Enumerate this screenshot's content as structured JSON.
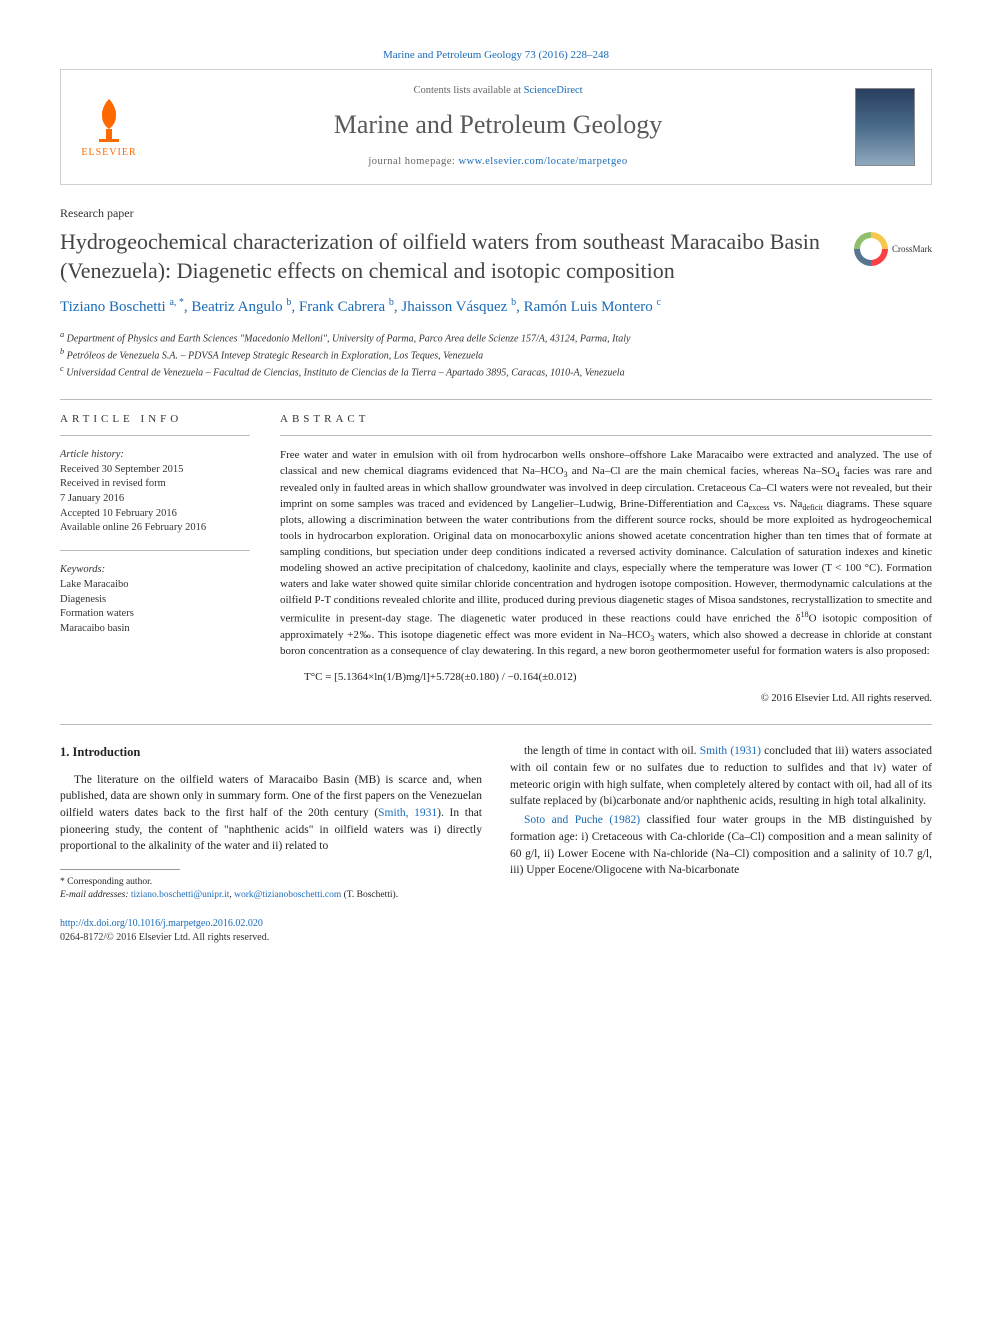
{
  "journal_ref": "Marine and Petroleum Geology 73 (2016) 228–248",
  "header": {
    "publisher": "ELSEVIER",
    "contents_prefix": "Contents lists available at ",
    "contents_link": "ScienceDirect",
    "journal_name": "Marine and Petroleum Geology",
    "home_prefix": "journal homepage: ",
    "home_url": "www.elsevier.com/locate/marpetgeo"
  },
  "paper_type": "Research paper",
  "title": "Hydrogeochemical characterization of oilfield waters from southeast Maracaibo Basin (Venezuela): Diagenetic effects on chemical and isotopic composition",
  "crossmark": "CrossMark",
  "authors_html": "Tiziano Boschetti <sup>a, *</sup>, Beatriz Angulo <sup>b</sup>, Frank Cabrera <sup>b</sup>, Jhaisson Vásquez <sup>b</sup>, Ramón Luis Montero <sup>c</sup>",
  "affiliations": [
    "a Department of Physics and Earth Sciences \"Macedonio Melloni\", University of Parma, Parco Area delle Scienze 157/A, 43124, Parma, Italy",
    "b Petróleos de Venezuela S.A. – PDVSA Intevep Strategic Research in Exploration, Los Teques, Venezuela",
    "c Universidad Central de Venezuela – Facultad de Ciencias, Instituto de Ciencias de la Tierra – Apartado 3895, Caracas, 1010-A, Venezuela"
  ],
  "article_info": {
    "head": "ARTICLE INFO",
    "history_label": "Article history:",
    "history": [
      "Received 30 September 2015",
      "Received in revised form",
      "7 January 2016",
      "Accepted 10 February 2016",
      "Available online 26 February 2016"
    ],
    "keywords_label": "Keywords:",
    "keywords": [
      "Lake Maracaibo",
      "Diagenesis",
      "Formation waters",
      "Maracaibo basin"
    ]
  },
  "abstract": {
    "head": "ABSTRACT",
    "text": "Free water and water in emulsion with oil from hydrocarbon wells onshore–offshore Lake Maracaibo were extracted and analyzed. The use of classical and new chemical diagrams evidenced that Na–HCO₃ and Na–Cl are the main chemical facies, whereas Na–SO₄ facies was rare and revealed only in faulted areas in which shallow groundwater was involved in deep circulation. Cretaceous Ca–Cl waters were not revealed, but their imprint on some samples was traced and evidenced by Langelier–Ludwig, Brine-Differentiation and Caexcess vs. Nadeficit diagrams. These square plots, allowing a discrimination between the water contributions from the different source rocks, should be more exploited as hydrogeochemical tools in hydrocarbon exploration. Original data on monocarboxylic anions showed acetate concentration higher than ten times that of formate at sampling conditions, but speciation under deep conditions indicated a reversed activity dominance. Calculation of saturation indexes and kinetic modeling showed an active precipitation of chalcedony, kaolinite and clays, especially where the temperature was lower (T < 100 °C). Formation waters and lake water showed quite similar chloride concentration and hydrogen isotope composition. However, thermodynamic calculations at the oilfield P-T conditions revealed chlorite and illite, produced during previous diagenetic stages of Misoa sandstones, recrystallization to smectite and vermiculite in present-day stage. The diagenetic water produced in these reactions could have enriched the δ¹⁸O isotopic composition of approximately +2‰. This isotope diagenetic effect was more evident in Na–HCO₃ waters, which also showed a decrease in chloride at constant boron concentration as a consequence of clay dewatering. In this regard, a new boron geothermometer useful for formation waters is also proposed:",
    "formula": "T°C = [5.1364×ln(1/B)mg/l]+5.728(±0.180) / −0.164(±0.012)",
    "copyright": "© 2016 Elsevier Ltd. All rights reserved."
  },
  "intro": {
    "heading": "1. Introduction",
    "left": "The literature on the oilfield waters of Maracaibo Basin (MB) is scarce and, when published, data are shown only in summary form. One of the first papers on the Venezuelan oilfield waters dates back to the first half of the 20th century (Smith, 1931). In that pioneering study, the content of \"naphthenic acids\" in oilfield waters was i) directly proportional to the alkalinity of the water and ii) related to",
    "right_p1": "the length of time in contact with oil. Smith (1931) concluded that iii) waters associated with oil contain few or no sulfates due to reduction to sulfides and that iv) water of meteoric origin with high sulfate, when completely altered by contact with oil, had all of its sulfate replaced by (bi)carbonate and/or naphthenic acids, resulting in high total alkalinity.",
    "right_p2": "Soto and Puche (1982) classified four water groups in the MB distinguished by formation age: i) Cretaceous with Ca-chloride (Ca–Cl) composition and a mean salinity of 60 g/l, ii) Lower Eocene with Na-chloride (Na–Cl) composition and a salinity of 10.7 g/l, iii) Upper Eocene/Oligocene with Na-bicarbonate",
    "ref1": "Smith, 1931",
    "ref2": "Smith (1931)",
    "ref3": "Soto and Puche (1982)"
  },
  "footer": {
    "corr_label": "* Corresponding author.",
    "email_label": "E-mail addresses: ",
    "email1": "tiziano.boschetti@unipr.it",
    "email2": "work@tizianoboschetti.com",
    "email_suffix": " (T. Boschetti).",
    "doi": "http://dx.doi.org/10.1016/j.marpetgeo.2016.02.020",
    "issn": "0264-8172/© 2016 Elsevier Ltd. All rights reserved."
  },
  "colors": {
    "link": "#1a6bb8",
    "orange": "#ff6a00",
    "grey_text": "#666",
    "border": "#d0d0d0"
  }
}
